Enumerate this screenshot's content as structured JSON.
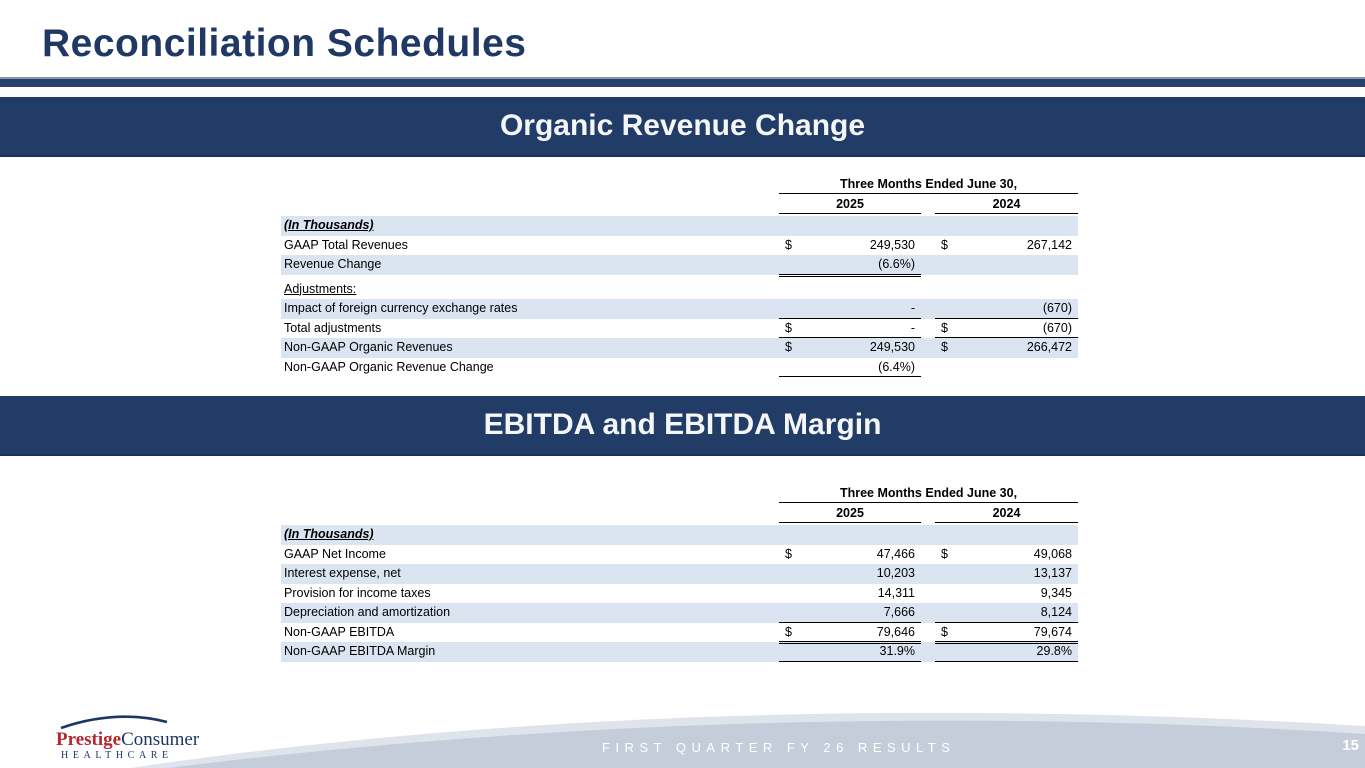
{
  "slide": {
    "title": "Reconciliation Schedules",
    "footer_text": "FIRST QUARTER FY 26 RESULTS",
    "page_number": "15"
  },
  "logo": {
    "part1": "Prestige",
    "part2": "Consumer",
    "part3": "HEALTHCARE"
  },
  "colors": {
    "navy_banner": "#223c68",
    "title_navy": "#1f3864",
    "row_band_blue": "#dbe5f1",
    "logo_red": "#b5282f",
    "footer_gray": "#c5cdda",
    "footer_light_gray": "#dfe4ec"
  },
  "sections": [
    {
      "banner": "Organic Revenue Change",
      "table": {
        "period_header": "Three Months Ended June 30,",
        "col_headers": [
          "2025",
          "2024"
        ],
        "rows": [
          {
            "label": "(In Thousands)",
            "cls": "unit",
            "band": true
          },
          {
            "label": "GAAP Total Revenues",
            "d1": "$",
            "v1": "249,530",
            "d2": "$",
            "v2": "267,142"
          },
          {
            "label": "Revenue Change",
            "band": true,
            "v1": "(6.6%)",
            "u1": "double"
          },
          {
            "label": "Adjustments:",
            "cls": "adj",
            "spacer": true
          },
          {
            "label": "Impact of foreign currency exchange rates",
            "band": true,
            "v1": "-",
            "v2": "(670)",
            "u1": "single",
            "u2": "single"
          },
          {
            "label": "Total adjustments",
            "d1": "$",
            "v1": "-",
            "d2": "$",
            "v2": "(670)",
            "u1": "single",
            "u2": "single"
          },
          {
            "label": "Non-GAAP Organic Revenues",
            "band": true,
            "d1": "$",
            "v1": "249,530",
            "d2": "$",
            "v2": "266,472"
          },
          {
            "label": "Non-GAAP Organic Revenue Change",
            "v1": "(6.4%)",
            "u1": "single"
          }
        ]
      }
    },
    {
      "banner": "EBITDA and EBITDA Margin",
      "table": {
        "period_header": "Three Months Ended June 30,",
        "col_headers": [
          "2025",
          "2024"
        ],
        "rows": [
          {
            "label": "(In Thousands)",
            "cls": "unit",
            "band": true
          },
          {
            "label": "GAAP Net Income",
            "d1": "$",
            "v1": "47,466",
            "d2": "$",
            "v2": "49,068"
          },
          {
            "label": "Interest expense, net",
            "band": true,
            "v1": "10,203",
            "v2": "13,137"
          },
          {
            "label": "Provision for income taxes",
            "v1": "14,311",
            "v2": "9,345"
          },
          {
            "label": "Depreciation and amortization",
            "band": true,
            "v1": "7,666",
            "v2": "8,124",
            "u1": "single",
            "u2": "single"
          },
          {
            "label": "Non-GAAP EBITDA",
            "d1": "$",
            "v1": "79,646",
            "d2": "$",
            "v2": "79,674",
            "u1": "double",
            "u2": "double"
          },
          {
            "label": "Non-GAAP EBITDA Margin",
            "band": true,
            "v1": "31.9%",
            "v2": "29.8%",
            "u1": "single",
            "u2": "single"
          }
        ]
      }
    }
  ]
}
